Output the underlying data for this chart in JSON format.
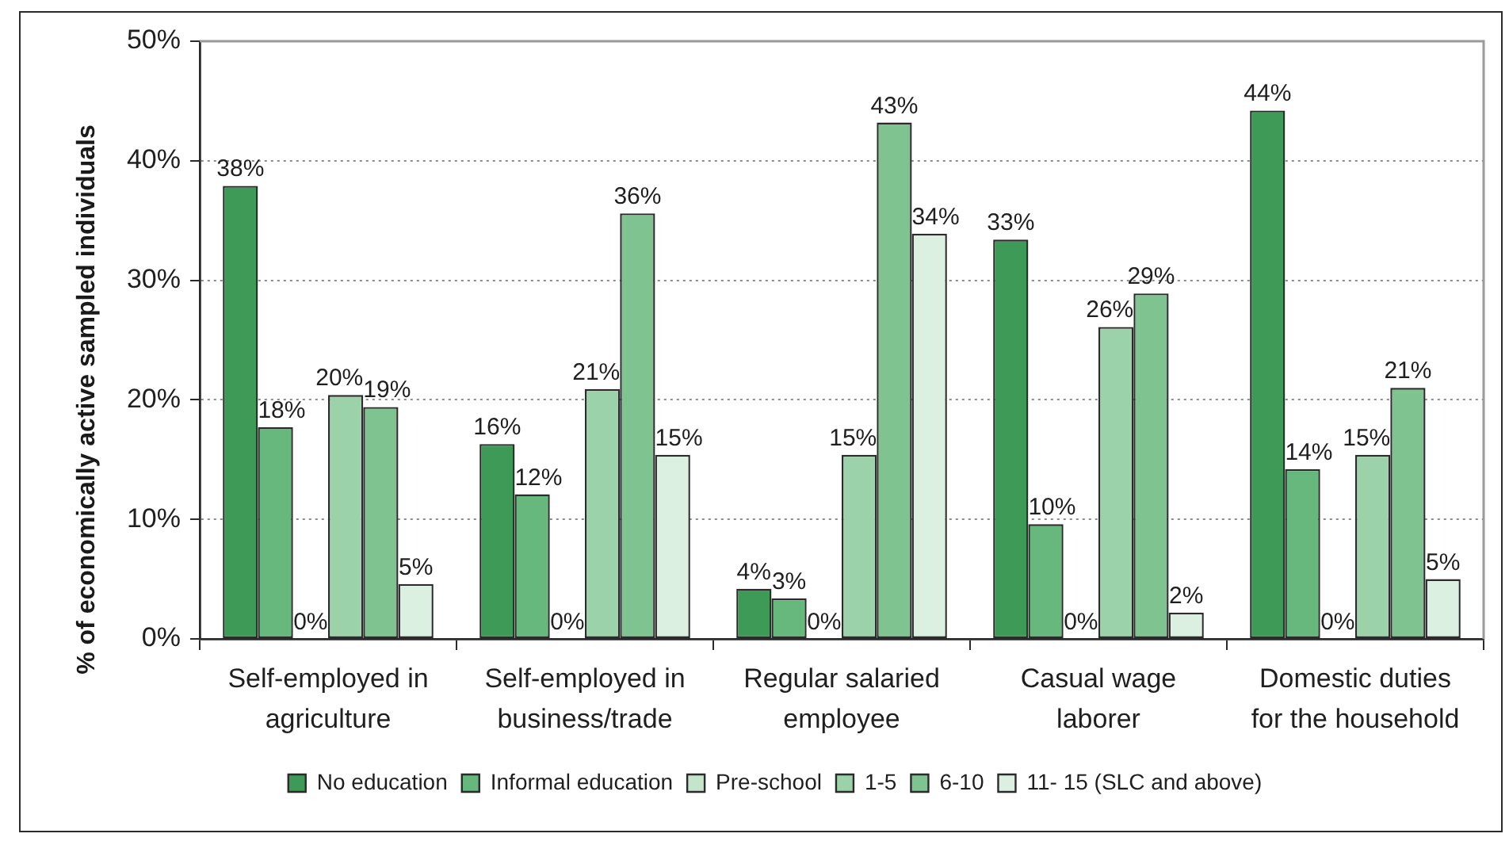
{
  "chart_data": {
    "type": "bar",
    "ylabel": "% of economically active sampled individuals",
    "categories": [
      "Self-employed in agriculture",
      "Self-employed in business/trade",
      "Regular salaried employee",
      "Casual wage laborer",
      "Domestic duties for the household"
    ],
    "series": [
      {
        "name": "No education",
        "color": "#3d9b57",
        "values": [
          37.9,
          16.3,
          4.2,
          33.4,
          44.2
        ],
        "value_labels": [
          "38%",
          "16%",
          "4%",
          "33%",
          "44%"
        ]
      },
      {
        "name": "Informal education",
        "color": "#66b87d",
        "values": [
          17.7,
          12.1,
          3.4,
          9.6,
          14.2
        ],
        "value_labels": [
          "18%",
          "12%",
          "3%",
          "10%",
          "14%"
        ]
      },
      {
        "name": "Pre-school",
        "color": "#c4e4cc",
        "values": [
          0,
          0,
          0,
          0,
          0
        ],
        "value_labels": [
          "0%",
          "0%",
          "0%",
          "0%",
          "0%"
        ]
      },
      {
        "name": "1-5",
        "color": "#9bd2a9",
        "values": [
          20.4,
          20.9,
          15.4,
          26.1,
          15.4
        ],
        "value_labels": [
          "20%",
          "21%",
          "15%",
          "26%",
          "15%"
        ]
      },
      {
        "name": "6-10",
        "color": "#7fc391",
        "values": [
          19.4,
          35.6,
          43.2,
          28.9,
          21.0
        ],
        "value_labels": [
          "19%",
          "36%",
          "43%",
          "29%",
          "21%"
        ]
      },
      {
        "name": "11- 15 (SLC and above)",
        "color": "#dcf0e1",
        "values": [
          4.6,
          15.4,
          33.9,
          2.2,
          5.0
        ],
        "value_labels": [
          "5%",
          "15%",
          "34%",
          "2%",
          "5%"
        ]
      }
    ],
    "ylim": [
      0,
      50
    ],
    "yticks": [
      {
        "value": 0,
        "label": "0%"
      },
      {
        "value": 10,
        "label": "10%"
      },
      {
        "value": 20,
        "label": "20%"
      },
      {
        "value": 30,
        "label": "30%"
      },
      {
        "value": 40,
        "label": "40%"
      },
      {
        "value": 50,
        "label": "50%"
      }
    ],
    "grid": "y",
    "legend": "bottom"
  }
}
